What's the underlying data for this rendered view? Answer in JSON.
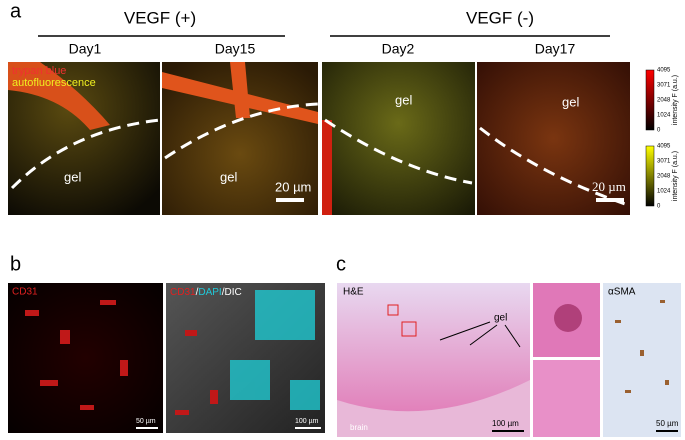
{
  "panel_a": {
    "label": "a",
    "groups": [
      {
        "title": "VEGF (+)",
        "days": [
          "Day1",
          "Day15"
        ]
      },
      {
        "title": "VEGF (-)",
        "days": [
          "Day2",
          "Day17"
        ]
      }
    ],
    "legend": [
      "trypan blue",
      "autofluorescence"
    ],
    "image_labels": [
      "gel",
      "gel",
      "gel",
      "gel"
    ],
    "scale_bars": [
      "20 µm",
      "20 µm"
    ],
    "colorbars": [
      {
        "label": "intensity F (a.u.)",
        "ticks": [
          "4095",
          "3071",
          "2048",
          "1024",
          "0"
        ]
      },
      {
        "label": "intensity F (a.u.)",
        "ticks": [
          "4095",
          "3071",
          "2048",
          "1024",
          "0"
        ]
      }
    ]
  },
  "panel_b": {
    "label": "b",
    "left_title": "CD31",
    "right_title_parts": [
      "CD31",
      "/",
      "DAPI",
      "/DIC"
    ],
    "scale_bars": [
      "50 µm",
      "100 µm"
    ]
  },
  "panel_c": {
    "label": "c",
    "he_title": "H&E",
    "gel_label": "gel",
    "brain_label": "brain",
    "scale_bars": [
      "100 µm",
      "50 µm"
    ],
    "sma_title": "αSMA"
  }
}
